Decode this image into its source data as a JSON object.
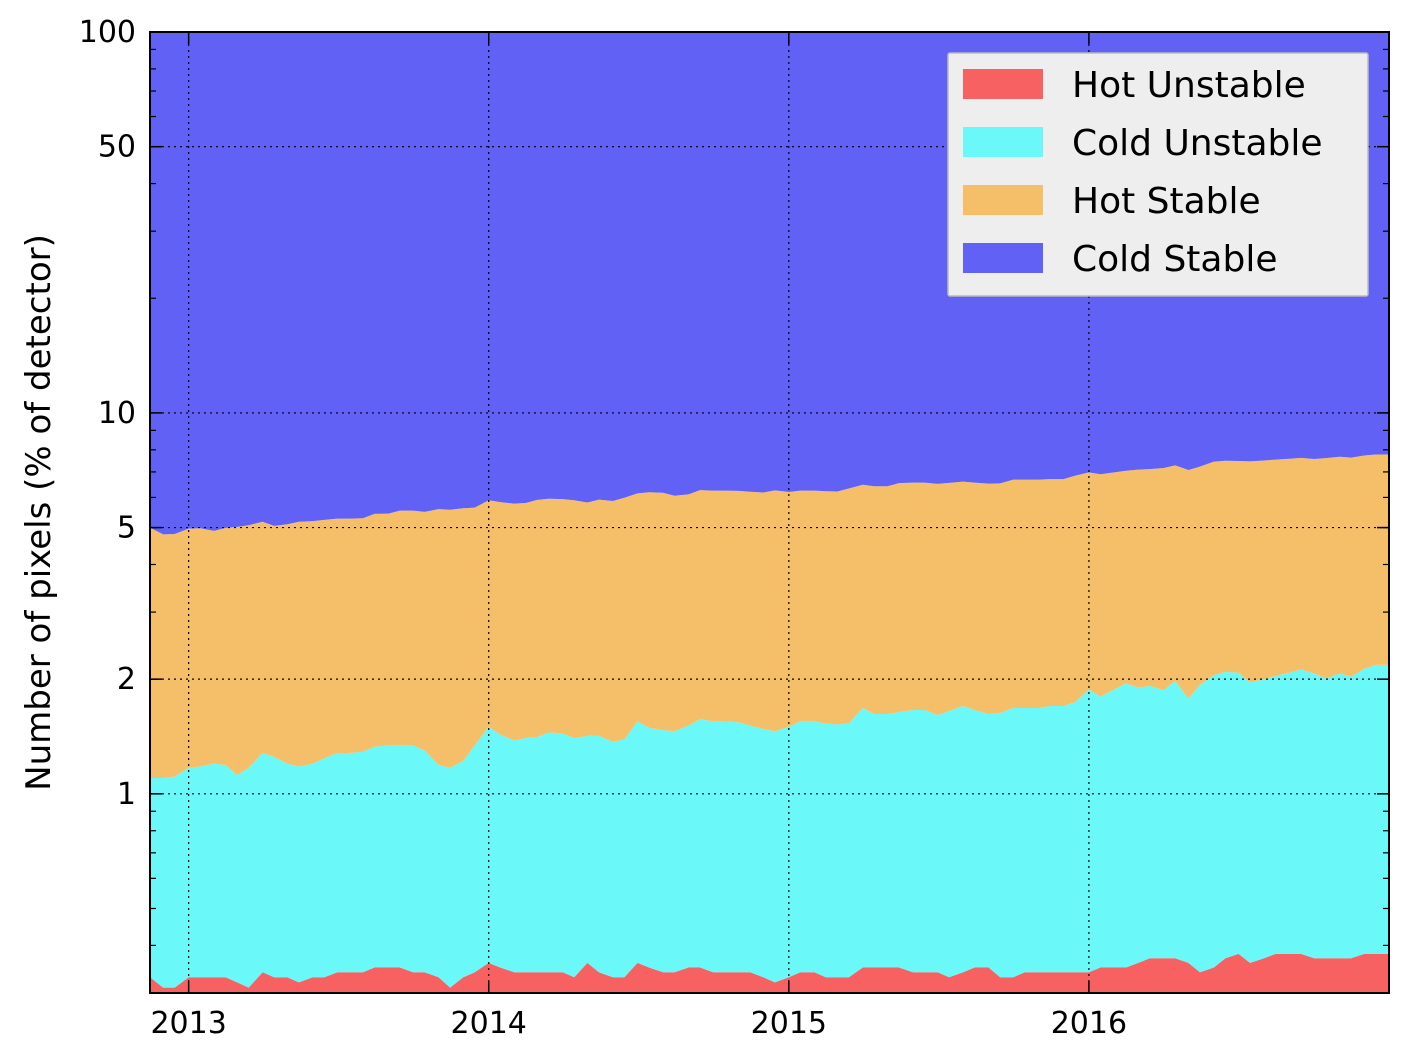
{
  "chart_data": {
    "type": "area",
    "stacked": true,
    "title": "",
    "xlabel": "",
    "ylabel": "Number of pixels (% of detector)",
    "yscale": "log",
    "ylim": [
      0.3,
      100
    ],
    "xlim": [
      "2012-11-15",
      "2016-12-31"
    ],
    "grid": true,
    "legend_position": "top-right",
    "x_ticks": [
      "2013",
      "2014",
      "2015",
      "2016"
    ],
    "y_ticks": [
      "1",
      "2",
      "5",
      "10",
      "50",
      "100"
    ],
    "x": [
      "2012-11-15",
      "2012-12-01",
      "2012-12-15",
      "2013-01-01",
      "2013-01-15",
      "2013-02-01",
      "2013-02-15",
      "2013-03-01",
      "2013-03-15",
      "2013-04-01",
      "2013-04-15",
      "2013-05-01",
      "2013-05-15",
      "2013-06-01",
      "2013-06-15",
      "2013-07-01",
      "2013-07-15",
      "2013-08-01",
      "2013-08-15",
      "2013-09-01",
      "2013-09-15",
      "2013-10-01",
      "2013-10-15",
      "2013-11-01",
      "2013-11-15",
      "2013-12-01",
      "2013-12-15",
      "2014-01-01",
      "2014-01-15",
      "2014-02-01",
      "2014-02-15",
      "2014-03-01",
      "2014-03-15",
      "2014-04-01",
      "2014-04-15",
      "2014-05-01",
      "2014-05-15",
      "2014-06-01",
      "2014-06-15",
      "2014-07-01",
      "2014-07-15",
      "2014-08-01",
      "2014-08-15",
      "2014-09-01",
      "2014-09-15",
      "2014-10-01",
      "2014-10-15",
      "2014-11-01",
      "2014-11-15",
      "2014-12-01",
      "2014-12-15",
      "2015-01-01",
      "2015-01-15",
      "2015-02-01",
      "2015-02-15",
      "2015-03-01",
      "2015-03-15",
      "2015-04-01",
      "2015-04-15",
      "2015-05-01",
      "2015-05-15",
      "2015-06-01",
      "2015-06-15",
      "2015-07-01",
      "2015-07-15",
      "2015-08-01",
      "2015-08-15",
      "2015-09-01",
      "2015-09-15",
      "2015-10-01",
      "2015-10-15",
      "2015-11-01",
      "2015-11-15",
      "2015-12-01",
      "2015-12-15",
      "2016-01-01",
      "2016-01-15",
      "2016-02-01",
      "2016-02-15",
      "2016-03-01",
      "2016-03-15",
      "2016-04-01",
      "2016-04-15",
      "2016-05-01",
      "2016-05-15",
      "2016-06-01",
      "2016-06-15",
      "2016-07-01",
      "2016-07-15",
      "2016-08-01",
      "2016-08-15",
      "2016-09-01",
      "2016-09-15",
      "2016-10-01",
      "2016-10-15",
      "2016-11-01",
      "2016-11-15",
      "2016-12-01",
      "2016-12-15",
      "2016-12-31"
    ],
    "series": [
      {
        "name": "Hot Unstable",
        "color": "#f86161",
        "values": [
          0.33,
          0.31,
          0.31,
          0.33,
          0.33,
          0.33,
          0.33,
          0.32,
          0.31,
          0.34,
          0.33,
          0.33,
          0.32,
          0.33,
          0.33,
          0.34,
          0.34,
          0.34,
          0.35,
          0.35,
          0.35,
          0.34,
          0.34,
          0.33,
          0.31,
          0.33,
          0.34,
          0.36,
          0.35,
          0.34,
          0.34,
          0.34,
          0.34,
          0.34,
          0.33,
          0.36,
          0.34,
          0.33,
          0.33,
          0.36,
          0.35,
          0.34,
          0.34,
          0.35,
          0.35,
          0.34,
          0.34,
          0.34,
          0.34,
          0.33,
          0.32,
          0.33,
          0.34,
          0.34,
          0.33,
          0.33,
          0.33,
          0.35,
          0.35,
          0.35,
          0.35,
          0.34,
          0.34,
          0.34,
          0.33,
          0.34,
          0.35,
          0.35,
          0.33,
          0.33,
          0.34,
          0.34,
          0.34,
          0.34,
          0.34,
          0.34,
          0.35,
          0.35,
          0.35,
          0.36,
          0.37,
          0.37,
          0.37,
          0.36,
          0.34,
          0.35,
          0.37,
          0.38,
          0.36,
          0.37,
          0.38,
          0.38,
          0.38,
          0.37,
          0.37,
          0.37,
          0.37,
          0.38,
          0.38,
          0.38
        ]
      },
      {
        "name": "Cold Unstable",
        "color": "#6af8f8",
        "values": [
          0.77,
          0.79,
          0.8,
          0.84,
          0.85,
          0.87,
          0.86,
          0.8,
          0.86,
          0.94,
          0.92,
          0.87,
          0.86,
          0.87,
          0.91,
          0.94,
          0.94,
          0.95,
          0.98,
          0.99,
          0.99,
          1.0,
          0.96,
          0.86,
          0.86,
          0.89,
          1.0,
          1.14,
          1.08,
          1.04,
          1.06,
          1.07,
          1.11,
          1.1,
          1.07,
          1.06,
          1.08,
          1.04,
          1.06,
          1.19,
          1.14,
          1.13,
          1.12,
          1.16,
          1.22,
          1.21,
          1.21,
          1.2,
          1.17,
          1.15,
          1.14,
          1.17,
          1.21,
          1.21,
          1.2,
          1.19,
          1.2,
          1.33,
          1.27,
          1.27,
          1.29,
          1.32,
          1.32,
          1.27,
          1.32,
          1.36,
          1.31,
          1.27,
          1.3,
          1.35,
          1.34,
          1.34,
          1.36,
          1.36,
          1.4,
          1.54,
          1.45,
          1.53,
          1.6,
          1.54,
          1.55,
          1.5,
          1.61,
          1.42,
          1.59,
          1.7,
          1.72,
          1.7,
          1.6,
          1.63,
          1.66,
          1.7,
          1.74,
          1.7,
          1.64,
          1.7,
          1.66,
          1.75,
          1.8,
          1.8
        ]
      },
      {
        "name": "Hot Stable",
        "color": "#f5bf69",
        "values": [
          3.9,
          3.7,
          3.7,
          3.8,
          3.8,
          3.7,
          3.8,
          3.9,
          3.9,
          3.9,
          3.8,
          3.9,
          4.0,
          4.0,
          4.0,
          4.0,
          4.0,
          4.0,
          4.1,
          4.1,
          4.2,
          4.2,
          4.2,
          4.4,
          4.4,
          4.4,
          4.3,
          4.4,
          4.4,
          4.4,
          4.4,
          4.5,
          4.5,
          4.5,
          4.5,
          4.4,
          4.5,
          4.5,
          4.6,
          4.6,
          4.7,
          4.7,
          4.6,
          4.6,
          4.7,
          4.7,
          4.7,
          4.7,
          4.7,
          4.7,
          4.8,
          4.7,
          4.7,
          4.7,
          4.7,
          4.7,
          4.8,
          4.8,
          4.8,
          4.8,
          4.9,
          4.9,
          4.9,
          4.9,
          4.9,
          4.9,
          4.9,
          4.9,
          4.9,
          5.0,
          5.0,
          5.0,
          5.0,
          5.0,
          5.1,
          5.1,
          5.1,
          5.1,
          5.1,
          5.2,
          5.2,
          5.3,
          5.3,
          5.3,
          5.3,
          5.4,
          5.4,
          5.4,
          5.5,
          5.5,
          5.5,
          5.5,
          5.5,
          5.5,
          5.6,
          5.6,
          5.6,
          5.6,
          5.6,
          5.6
        ]
      },
      {
        "name": "Cold Stable",
        "color": "#6161f5",
        "fills_to_top": true
      }
    ]
  },
  "legend_items": [
    "Hot Unstable",
    "Cold Unstable",
    "Hot Stable",
    "Cold Stable"
  ]
}
